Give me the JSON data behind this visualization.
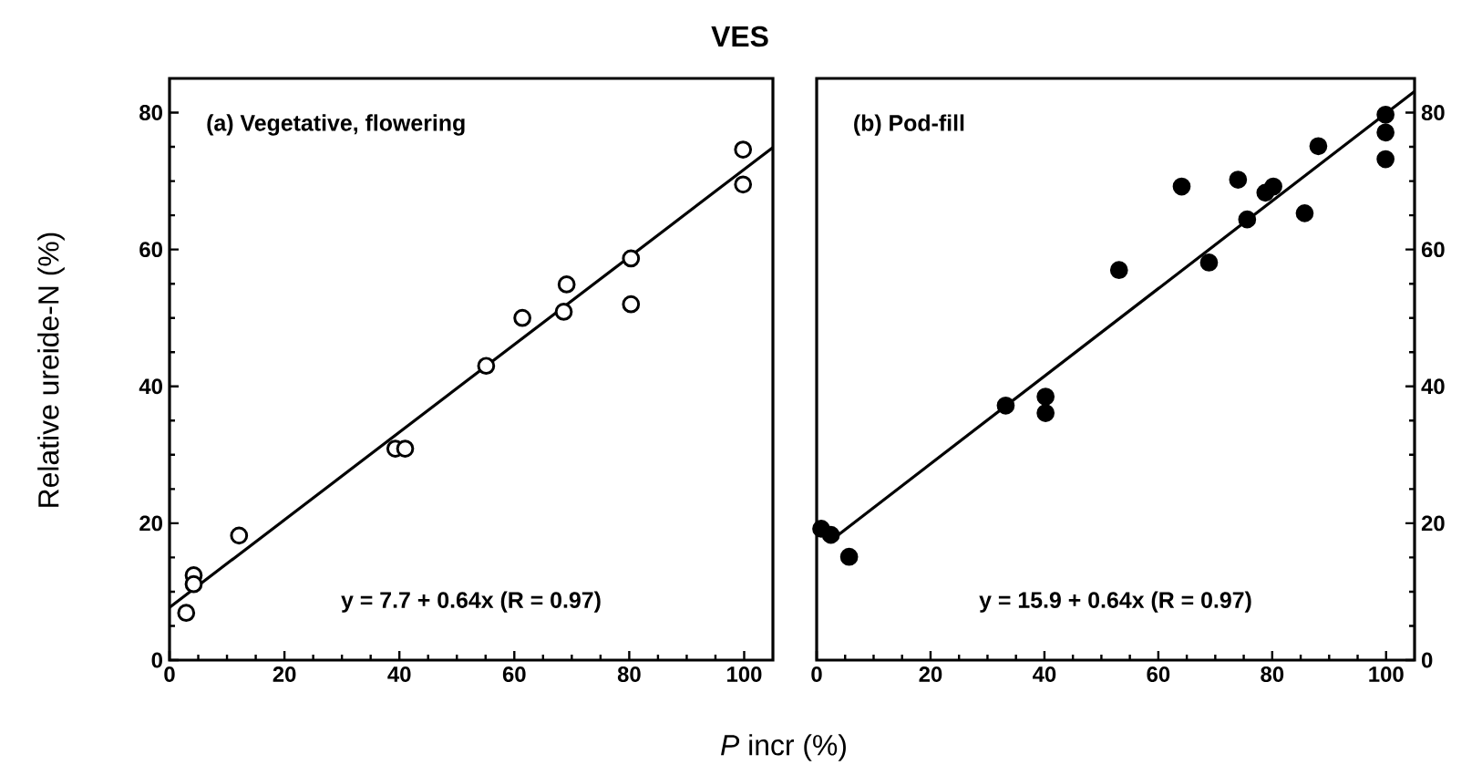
{
  "chart_data": [
    {
      "type": "scatter",
      "title": "VES",
      "xlabel": "*P* incr (%)",
      "ylabel": "Relative  ureide-N  (%)",
      "xlim": [
        0,
        105
      ],
      "ylim": [
        0,
        85
      ],
      "xticks": [
        0,
        20,
        40,
        60,
        80,
        100
      ],
      "yticks": [
        0,
        20,
        40,
        60,
        80
      ],
      "grid": false,
      "annotations": [
        "(a) Vegetative, flowering",
        "y = 7.7 + 0.64x  (R = 0.97)"
      ],
      "series": [
        {
          "color": "#000000",
          "marker": "circle",
          "x": [
            2.9,
            4.2,
            4.2,
            12.1,
            39.3,
            41.0,
            55.1,
            61.4,
            68.6,
            69.1,
            80.3,
            80.3,
            99.8,
            99.8
          ],
          "values": [
            6.9,
            12.4,
            11.1,
            18.2,
            30.9,
            30.9,
            43.0,
            50.0,
            50.9,
            54.9,
            58.7,
            52.0,
            74.6,
            69.5
          ]
        },
        {
          "type": "line",
          "color": "#000000",
          "x": [
            0,
            105
          ],
          "values": [
            7.7,
            74.9
          ]
        }
      ]
    },
    {
      "type": "scatter",
      "xlim": [
        0,
        105
      ],
      "ylim": [
        0,
        85
      ],
      "xticks": [
        0,
        20,
        40,
        60,
        80,
        100
      ],
      "yticks": [
        0,
        20,
        40,
        60,
        80
      ],
      "grid": false,
      "annotations": [
        "(b) Pod-fill",
        "y = 15.9 + 0.64x  (R = 0.97)"
      ],
      "series": [
        {
          "color": "#000000",
          "marker": "circle",
          "x": [
            0.8,
            2.5,
            5.7,
            33.2,
            40.2,
            40.2,
            53.1,
            64.1,
            68.9,
            74.0,
            75.6,
            78.8,
            80.2,
            85.7,
            88.1,
            99.9,
            99.9,
            99.9
          ],
          "values": [
            19.2,
            18.3,
            15.1,
            37.2,
            38.5,
            36.1,
            57.0,
            69.2,
            58.1,
            70.2,
            64.4,
            68.3,
            69.2,
            65.3,
            75.1,
            79.7,
            77.1,
            73.2
          ]
        },
        {
          "type": "line",
          "color": "#000000",
          "x": [
            3,
            105
          ],
          "values": [
            17.8,
            83.1
          ]
        }
      ]
    }
  ]
}
